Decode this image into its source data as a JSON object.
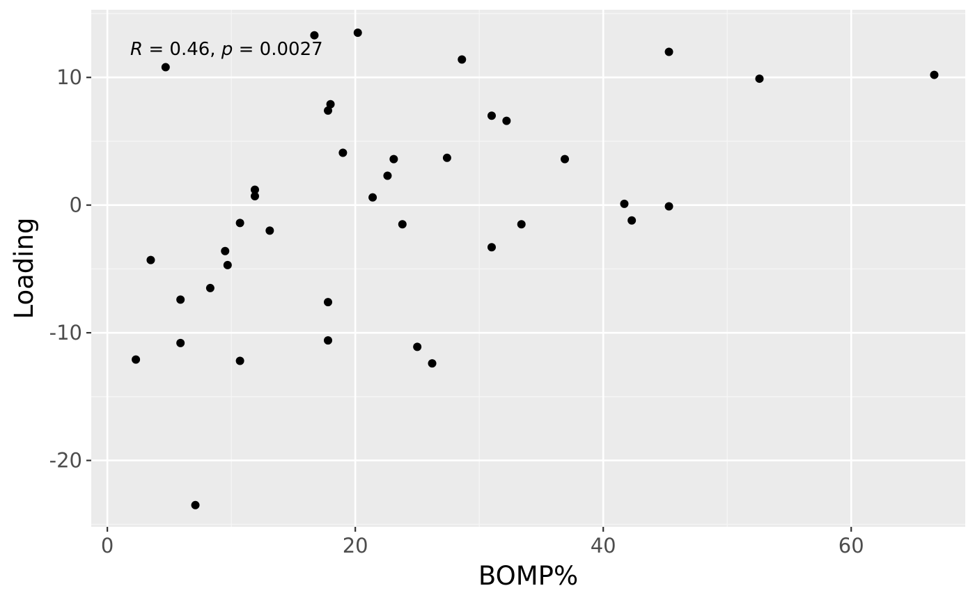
{
  "chart_data": {
    "type": "scatter",
    "title": "",
    "xlabel": "BOMP%",
    "ylabel": "Loading",
    "xlim": [
      -1.3,
      69.2
    ],
    "ylim": [
      -25.2,
      15.3
    ],
    "x_ticks": [
      0,
      20,
      40,
      60
    ],
    "y_ticks": [
      -20,
      -10,
      0,
      10
    ],
    "x_tick_labels": [
      "0",
      "20",
      "40",
      "60"
    ],
    "y_tick_labels": [
      "-20",
      "-10",
      "0",
      "10"
    ],
    "grid": true,
    "annotation": {
      "text": "R = 0.46, p = 0.0027",
      "r_label": "R",
      "r_value": "0.46",
      "p_label": "p",
      "p_value": "0.0027"
    },
    "points": [
      {
        "x": 2.3,
        "y": -12.1
      },
      {
        "x": 3.5,
        "y": -4.3
      },
      {
        "x": 4.7,
        "y": 10.8
      },
      {
        "x": 5.9,
        "y": -7.4
      },
      {
        "x": 5.9,
        "y": -10.8
      },
      {
        "x": 7.1,
        "y": -23.5
      },
      {
        "x": 8.3,
        "y": -6.5
      },
      {
        "x": 9.5,
        "y": -3.6
      },
      {
        "x": 9.7,
        "y": -4.7
      },
      {
        "x": 10.7,
        "y": -1.4
      },
      {
        "x": 10.7,
        "y": -12.2
      },
      {
        "x": 11.9,
        "y": 1.2
      },
      {
        "x": 11.9,
        "y": 0.7
      },
      {
        "x": 13.1,
        "y": -2.0
      },
      {
        "x": 16.7,
        "y": 13.3
      },
      {
        "x": 17.8,
        "y": 7.4
      },
      {
        "x": 18.0,
        "y": 7.9
      },
      {
        "x": 17.8,
        "y": -7.6
      },
      {
        "x": 17.8,
        "y": -10.6
      },
      {
        "x": 19.0,
        "y": 4.1
      },
      {
        "x": 20.2,
        "y": 13.5
      },
      {
        "x": 21.4,
        "y": 0.6
      },
      {
        "x": 22.6,
        "y": 2.3
      },
      {
        "x": 23.1,
        "y": 3.6
      },
      {
        "x": 23.8,
        "y": -1.5
      },
      {
        "x": 25.0,
        "y": -11.1
      },
      {
        "x": 26.2,
        "y": -12.4
      },
      {
        "x": 27.4,
        "y": 3.7
      },
      {
        "x": 28.6,
        "y": 11.4
      },
      {
        "x": 31.0,
        "y": 7.0
      },
      {
        "x": 31.0,
        "y": -3.3
      },
      {
        "x": 32.2,
        "y": 6.6
      },
      {
        "x": 33.4,
        "y": -1.5
      },
      {
        "x": 36.9,
        "y": 3.6
      },
      {
        "x": 41.7,
        "y": 0.1
      },
      {
        "x": 42.3,
        "y": -1.2
      },
      {
        "x": 45.3,
        "y": 12.0
      },
      {
        "x": 45.3,
        "y": -0.1
      },
      {
        "x": 52.6,
        "y": 9.9
      },
      {
        "x": 66.7,
        "y": 10.2
      }
    ]
  },
  "colors": {
    "panel_background": "#ebebeb",
    "major_grid": "#ffffff",
    "minor_grid": "#f5f5f5",
    "point": "#000000",
    "tick_label": "#4d4d4d",
    "tick_mark": "#333333",
    "axis_title": "#000000"
  }
}
